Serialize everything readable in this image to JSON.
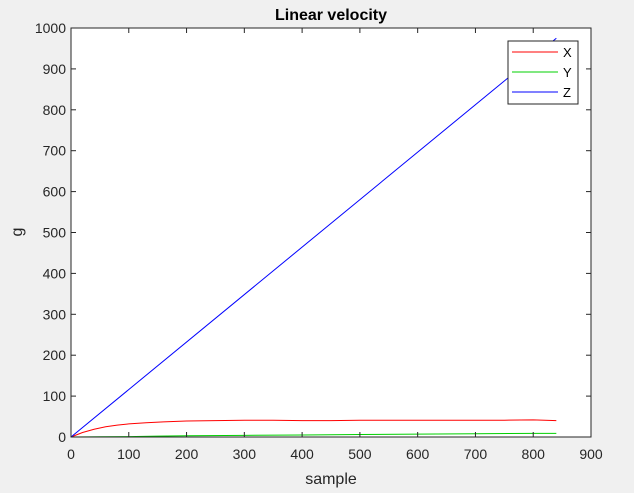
{
  "chart_data": {
    "type": "line",
    "title": "Linear velocity",
    "xlabel": "sample",
    "ylabel": "g",
    "xlim": [
      0,
      900
    ],
    "ylim": [
      0,
      1000
    ],
    "xticks": [
      0,
      100,
      200,
      300,
      400,
      500,
      600,
      700,
      800,
      900
    ],
    "yticks": [
      0,
      100,
      200,
      300,
      400,
      500,
      600,
      700,
      800,
      900,
      1000
    ],
    "grid": false,
    "legend_position": "top-right",
    "series": [
      {
        "name": "X",
        "color": "#ff0000",
        "x": [
          0,
          20,
          40,
          60,
          80,
          100,
          130,
          160,
          200,
          250,
          300,
          350,
          400,
          450,
          500,
          550,
          600,
          650,
          700,
          750,
          800,
          840
        ],
        "y": [
          0,
          11,
          19,
          25,
          29,
          32,
          35,
          37,
          39,
          40,
          41,
          41,
          40,
          40,
          41,
          41,
          41,
          41,
          41,
          41,
          42,
          40
        ]
      },
      {
        "name": "Y",
        "color": "#00d000",
        "x": [
          0,
          50,
          100,
          150,
          200,
          300,
          400,
          500,
          600,
          700,
          800,
          840
        ],
        "y": [
          0,
          0.5,
          1,
          2,
          3,
          4,
          5,
          6,
          7,
          8,
          9,
          9
        ]
      },
      {
        "name": "Z",
        "color": "#0000ff",
        "x": [
          0,
          840
        ],
        "y": [
          0,
          975
        ]
      }
    ]
  }
}
